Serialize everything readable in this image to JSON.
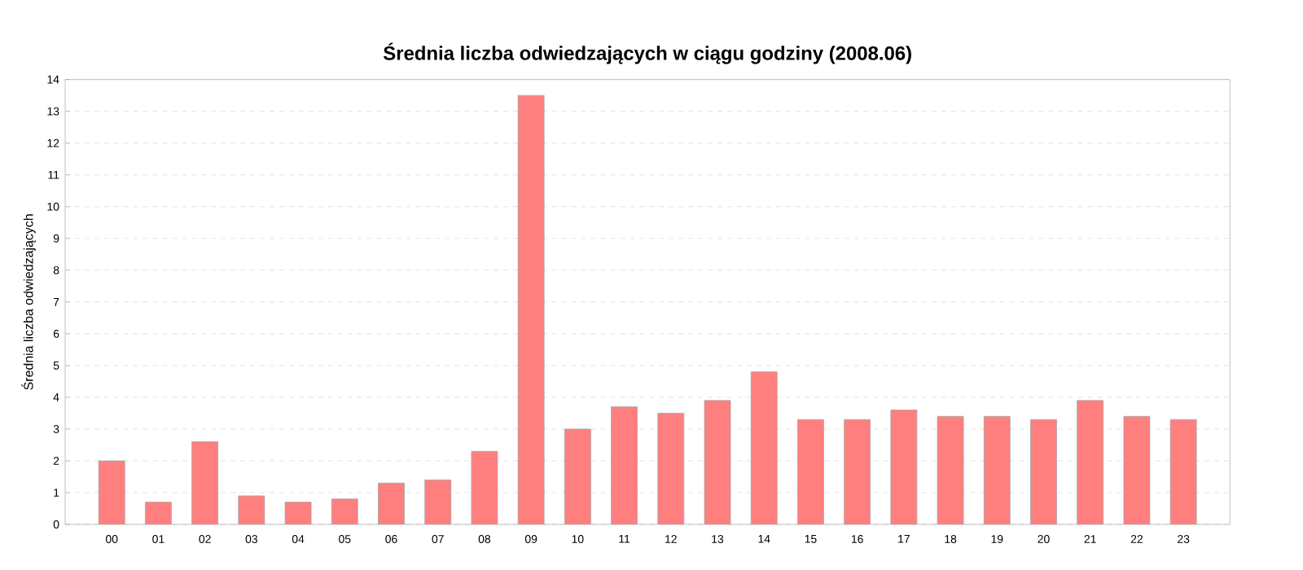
{
  "chart_data": {
    "type": "bar",
    "title": "Średnia liczba odwiedzających w ciągu godziny (2008.06)",
    "ylabel": "Średnia liczba odwiedzających",
    "categories": [
      "00",
      "01",
      "02",
      "03",
      "04",
      "05",
      "06",
      "07",
      "08",
      "09",
      "10",
      "11",
      "12",
      "13",
      "14",
      "15",
      "16",
      "17",
      "18",
      "19",
      "20",
      "21",
      "22",
      "23"
    ],
    "values": [
      2.0,
      0.7,
      2.6,
      0.9,
      0.7,
      0.8,
      1.3,
      1.4,
      2.3,
      13.5,
      3.0,
      3.7,
      3.5,
      3.9,
      4.8,
      3.3,
      3.3,
      3.6,
      3.4,
      3.4,
      3.3,
      3.9,
      3.4,
      3.3
    ],
    "color": "#ff7f7f",
    "ylim": [
      0,
      14
    ],
    "yticks": [
      0,
      1,
      2,
      3,
      4,
      5,
      6,
      7,
      8,
      9,
      10,
      11,
      12,
      13,
      14
    ],
    "grid": "y"
  }
}
